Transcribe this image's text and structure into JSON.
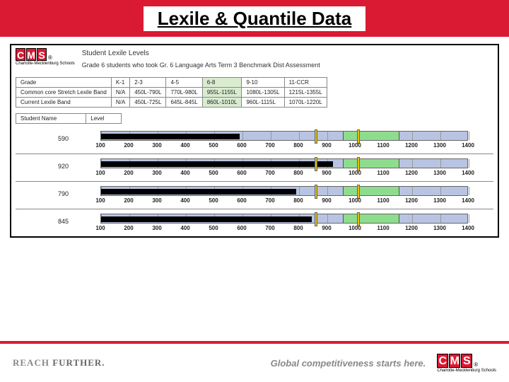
{
  "header": {
    "title": "Lexile & Quantile Data"
  },
  "logo": {
    "letters": [
      "C",
      "M",
      "S"
    ],
    "sub": "Charlotte-Mecklenburg Schools"
  },
  "report": {
    "title": "Student Lexile Levels",
    "subtitle": "Grade 6 students who took Gr. 6 Language Arts Term 3 Benchmark Dist Assessment"
  },
  "grade_table": {
    "rows": [
      {
        "label": "Grade",
        "cells": [
          "K-1",
          "2-3",
          "4-5",
          "6-8",
          "9-10",
          "11-CCR"
        ],
        "hi_index": 3
      },
      {
        "label": "Common core Stretch Lexile Band",
        "cells": [
          "N/A",
          "450L-790L",
          "770L-980L",
          "955L-1155L",
          "1080L-1305L",
          "1215L-1355L"
        ],
        "hi_index": 3
      },
      {
        "label": "Current Lexile Band",
        "cells": [
          "N/A",
          "450L-725L",
          "645L-845L",
          "860L-1010L",
          "960L-1115L",
          "1070L-1220L"
        ],
        "hi_index": 3
      }
    ]
  },
  "name_level": {
    "name_label": "Student Name",
    "level_label": "Level"
  },
  "chart": {
    "axis_min": 100,
    "axis_max": 1400,
    "ticks": [
      100,
      200,
      300,
      400,
      500,
      600,
      700,
      800,
      900,
      1000,
      1100,
      1200,
      1300,
      1400
    ],
    "green_band": {
      "start": 955,
      "end": 1155
    },
    "handle_range": {
      "start": 860,
      "end": 1010
    },
    "track_color": "#b8c4e2",
    "bar_color": "#000000",
    "green_color": "#8edc8e",
    "handle_color": "#e0c000",
    "students": [
      {
        "lexile": 590
      },
      {
        "lexile": 920
      },
      {
        "lexile": 790
      },
      {
        "lexile": 845
      }
    ]
  },
  "footer": {
    "reach": "REACH",
    "further": "FURTHER.",
    "global": "Global competitiveness starts here."
  }
}
